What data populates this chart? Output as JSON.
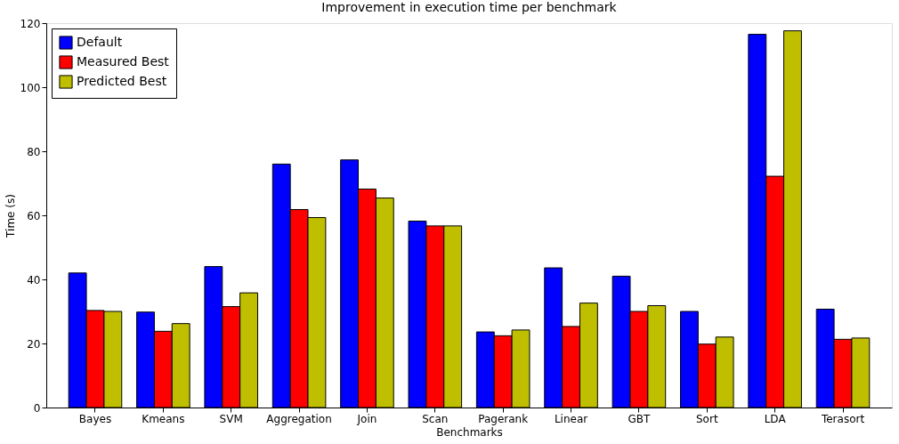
{
  "chart_data": {
    "type": "bar",
    "title": "Improvement in execution time per benchmark",
    "xlabel": "Benchmarks",
    "ylabel": "Time (s)",
    "categories": [
      "Bayes",
      "Kmeans",
      "SVM",
      "Aggregation",
      "Join",
      "Scan",
      "Pagerank",
      "Linear",
      "GBT",
      "Sort",
      "LDA",
      "Terasort"
    ],
    "series": [
      {
        "name": "Default",
        "color": "#0000ff",
        "values": [
          42,
          29.8,
          44,
          76,
          77.3,
          58.2,
          23.6,
          43.6,
          41,
          30,
          116.5,
          30.7
        ]
      },
      {
        "name": "Measured Best",
        "color": "#ff0000",
        "values": [
          30.3,
          23.8,
          31.5,
          61.8,
          68.2,
          56.7,
          22.4,
          25.3,
          30,
          19.8,
          72.2,
          21.3
        ]
      },
      {
        "name": "Predicted Best",
        "color": "#bfbf00",
        "values": [
          30,
          26.2,
          35.8,
          59.3,
          65.4,
          56.7,
          24.2,
          32.6,
          31.8,
          22,
          117.6,
          21.7
        ]
      }
    ],
    "ylim": [
      0,
      120
    ],
    "yticks": [
      0,
      20,
      40,
      60,
      80,
      100,
      120
    ],
    "grid": false,
    "legend": "top left"
  }
}
